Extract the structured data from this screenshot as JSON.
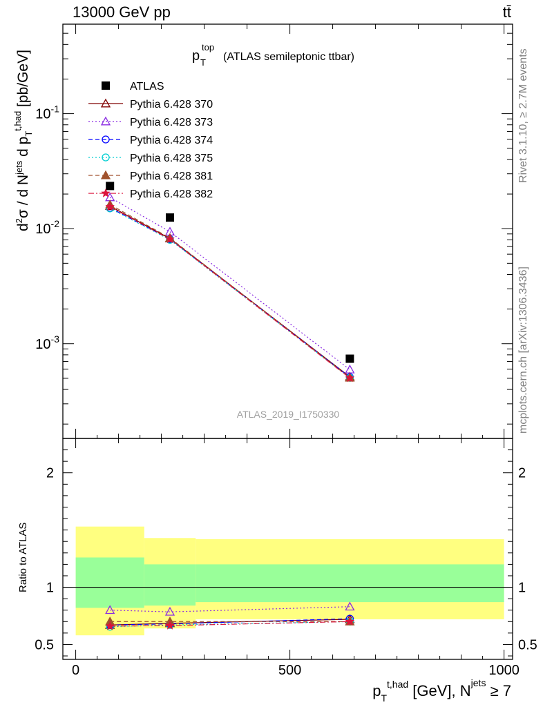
{
  "header": {
    "energy": "13000 GeV pp",
    "process": "tt̄"
  },
  "side_labels": {
    "rivet": "Rivet 3.1.10, ≥ 2.7M events",
    "mcplots": "mcplots.cern.ch [arXiv:1306.3436]"
  },
  "plot_title": {
    "main": "p",
    "sub": "T",
    "sup": "top",
    "rest": "(ATLAS semileptonic ttbar)"
  },
  "analysis_id": "ATLAS_2019_I1750330",
  "axes": {
    "ylabel_main": "d²σ / d N^jets d p_T^t,had [pb/GeV]",
    "ylabel_ratio": "Ratio to ATLAS",
    "xlabel": "p_T^t,had [GeV], N^jets ≥ 7"
  },
  "chart_data": [
    {
      "type": "scatter",
      "panel": "main",
      "yscale": "log",
      "xlim": [
        -30,
        1020
      ],
      "ylim": [
        0.00015,
        0.6
      ],
      "x": [
        80,
        220,
        640
      ],
      "x_ticks": [
        0,
        500,
        1000
      ],
      "y_ticks": [
        {
          "value": 0.001,
          "label": "10^-3"
        },
        {
          "value": 0.01,
          "label": "10^-2"
        },
        {
          "value": 0.1,
          "label": "10^-1"
        }
      ],
      "series": [
        {
          "name": "ATLAS",
          "key": "atlas",
          "color": "#000000",
          "marker": "square-filled",
          "line": "none",
          "values": [
            0.0235,
            0.0125,
            0.00074
          ]
        },
        {
          "name": "Pythia 6.428 370",
          "key": "p370",
          "color": "#800000",
          "marker": "triangle-open",
          "line": "solid",
          "values": [
            0.0157,
            0.0082,
            0.000515
          ]
        },
        {
          "name": "Pythia 6.428 373",
          "key": "p373",
          "color": "#8a2be2",
          "marker": "triangle-open",
          "line": "dotted",
          "values": [
            0.0187,
            0.0094,
            0.000595
          ]
        },
        {
          "name": "Pythia 6.428 374",
          "key": "p374",
          "color": "#0000ff",
          "marker": "circle-open",
          "line": "dashed",
          "values": [
            0.0152,
            0.0081,
            0.000512
          ]
        },
        {
          "name": "Pythia 6.428 375",
          "key": "p375",
          "color": "#00ced1",
          "marker": "circle-open",
          "line": "dotted",
          "values": [
            0.015,
            0.008,
            0.000505
          ]
        },
        {
          "name": "Pythia 6.428 381",
          "key": "p381",
          "color": "#a0522d",
          "marker": "triangle-filled",
          "line": "dashed",
          "values": [
            0.0162,
            0.0083,
            0.000505
          ]
        },
        {
          "name": "Pythia 6.428 382",
          "key": "p382",
          "color": "#dc143c",
          "marker": "star-filled",
          "line": "dashdot",
          "values": [
            0.0155,
            0.0081,
            0.000502
          ]
        }
      ]
    },
    {
      "type": "scatter",
      "panel": "ratio",
      "yscale": "linear",
      "xlim": [
        -30,
        1020
      ],
      "ylim": [
        0.37,
        2.3
      ],
      "x": [
        80,
        220,
        640
      ],
      "x_ticks": [
        0,
        500,
        1000
      ],
      "y_ticks": [
        0.5,
        1,
        2
      ],
      "reference_line": 1,
      "uncertainty_bands": {
        "bins": [
          [
            0,
            160
          ],
          [
            160,
            280
          ],
          [
            280,
            1000
          ]
        ],
        "yellow": [
          [
            0.58,
            1.53
          ],
          [
            0.64,
            1.43
          ],
          [
            0.72,
            1.42
          ]
        ],
        "green": [
          [
            0.82,
            1.26
          ],
          [
            0.84,
            1.2
          ],
          [
            0.87,
            1.2
          ]
        ],
        "yellow_color": "#ffff80",
        "green_color": "#99ff99"
      },
      "series": [
        {
          "name": "Pythia 6.428 370",
          "key": "p370",
          "color": "#800000",
          "marker": "triangle-open",
          "line": "solid",
          "values": [
            0.67,
            0.685,
            0.72
          ]
        },
        {
          "name": "Pythia 6.428 373",
          "key": "p373",
          "color": "#8a2be2",
          "marker": "triangle-open",
          "line": "dotted",
          "values": [
            0.8,
            0.785,
            0.83
          ]
        },
        {
          "name": "Pythia 6.428 374",
          "key": "p374",
          "color": "#0000ff",
          "marker": "circle-open",
          "line": "dashed",
          "values": [
            0.67,
            0.68,
            0.725
          ]
        },
        {
          "name": "Pythia 6.428 375",
          "key": "p375",
          "color": "#00ced1",
          "marker": "circle-open",
          "line": "dotted",
          "values": [
            0.655,
            0.67,
            0.7
          ]
        },
        {
          "name": "Pythia 6.428 381",
          "key": "p381",
          "color": "#a0522d",
          "marker": "triangle-filled",
          "line": "dashed",
          "values": [
            0.7,
            0.7,
            0.7
          ]
        },
        {
          "name": "Pythia 6.428 382",
          "key": "p382",
          "color": "#dc143c",
          "marker": "star-filled",
          "line": "dashdot",
          "values": [
            0.66,
            0.665,
            0.7
          ]
        }
      ]
    }
  ]
}
